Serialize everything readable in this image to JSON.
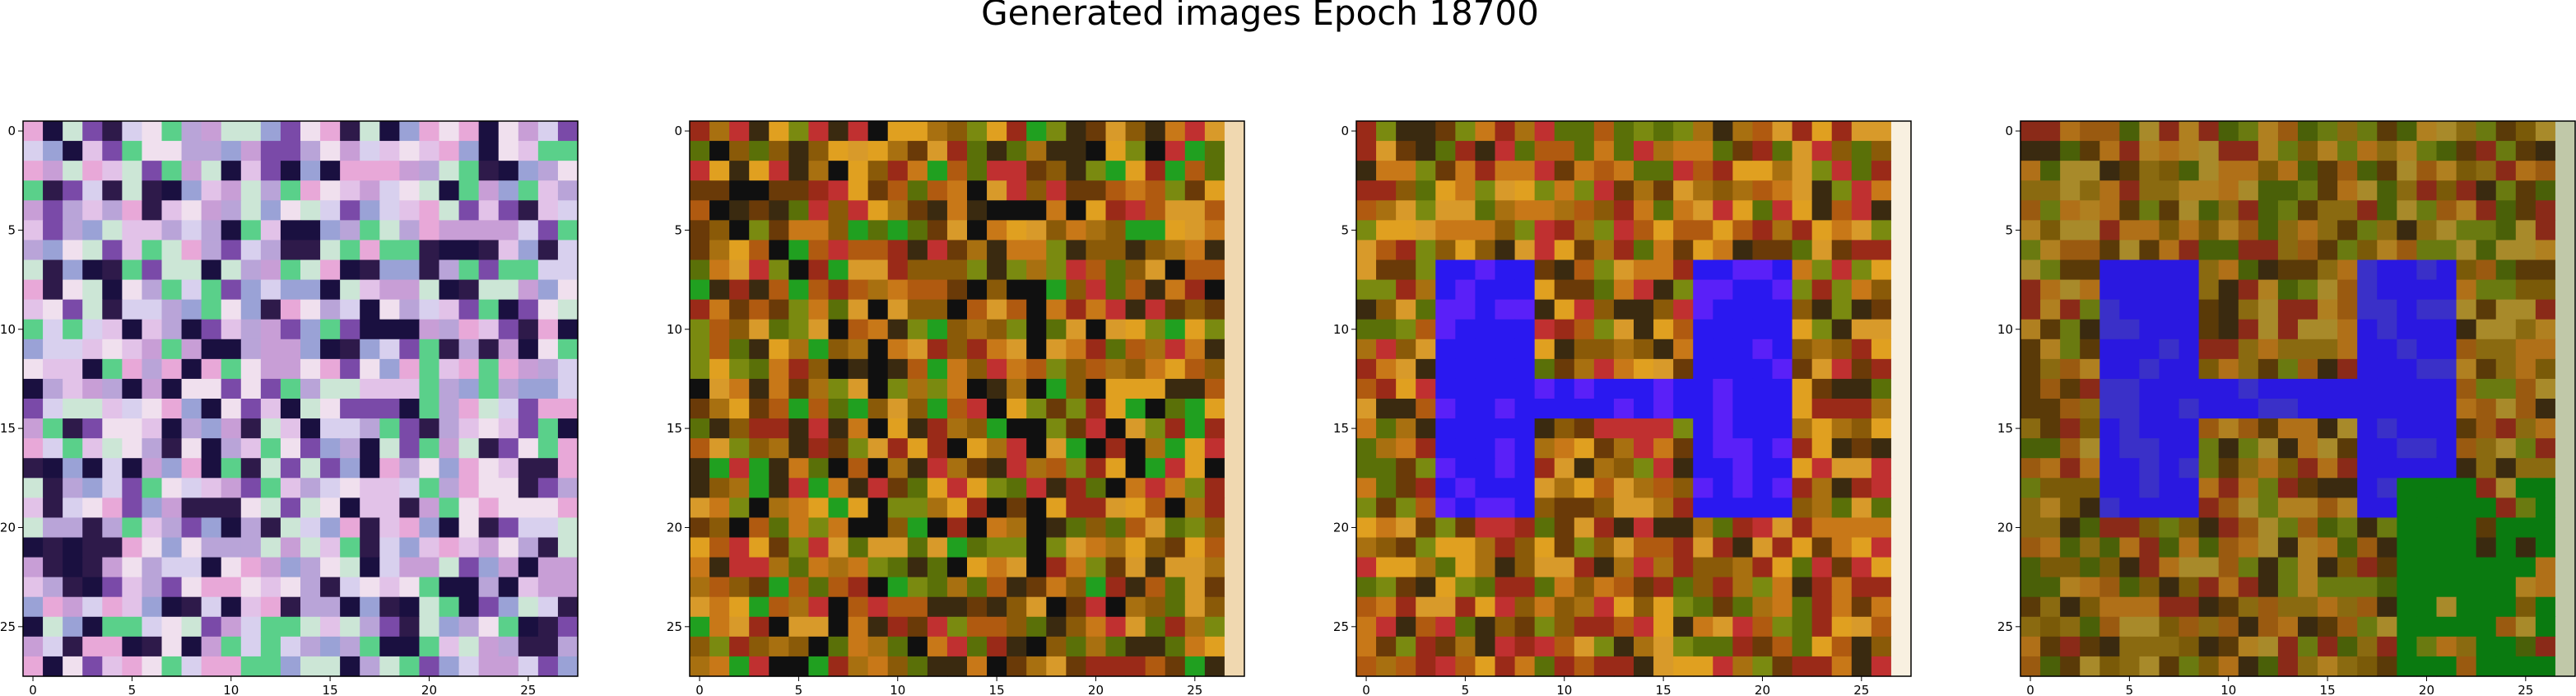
{
  "figure": {
    "suptitle": "Generated images Epoch 18700"
  },
  "chart_data": [
    {
      "type": "heatmap",
      "title": "",
      "grid_size": [
        28,
        28
      ],
      "xlim": [
        -0.5,
        27.5
      ],
      "ylim": [
        27.5,
        -0.5
      ],
      "xticks": [
        0,
        5,
        10,
        15,
        20,
        25
      ],
      "yticks": [
        0,
        5,
        10,
        15,
        20,
        25
      ],
      "grid": false,
      "palette": [
        "#c89ed6",
        "#e2c2e8",
        "#b9a4d8",
        "#d8d0ee",
        "#f0e0ee",
        "#9aa2d6",
        "#cce6d6",
        "#e8a8d8",
        "#7a4aa8",
        "#5ad08a",
        "#2e1a4a",
        "#1a1040"
      ],
      "pattern": "noise"
    },
    {
      "type": "heatmap",
      "title": "",
      "grid_size": [
        28,
        28
      ],
      "xlim": [
        -0.5,
        27.5
      ],
      "ylim": [
        27.5,
        -0.5
      ],
      "xticks": [
        0,
        5,
        10,
        15,
        20,
        25
      ],
      "yticks": [
        0,
        5,
        10,
        15,
        20,
        25
      ],
      "grid": false,
      "palette": [
        "#b05a10",
        "#c87818",
        "#8a5a08",
        "#a87010",
        "#6a3a08",
        "#d89a2a",
        "#7a8a10",
        "#5a7008",
        "#e0a020",
        "#9a2a18",
        "#c03030",
        "#3a2a10",
        "#20a020",
        "#101010"
      ],
      "last_column_color": "#f0d8b0",
      "pattern": "dark-vertical-strokes"
    },
    {
      "type": "heatmap",
      "title": "",
      "grid_size": [
        28,
        28
      ],
      "xlim": [
        -0.5,
        27.5
      ],
      "ylim": [
        27.5,
        -0.5
      ],
      "xticks": [
        0,
        5,
        10,
        15,
        20,
        25
      ],
      "yticks": [
        0,
        5,
        10,
        15,
        20,
        25
      ],
      "grid": false,
      "palette": [
        "#b05a10",
        "#c87818",
        "#8a5a08",
        "#a87010",
        "#6a3a08",
        "#d89a2a",
        "#7a8a10",
        "#5a7008",
        "#e0a020",
        "#9a2a18",
        "#c03030",
        "#3a2a10"
      ],
      "accent_color": "#2a18f0",
      "accent_alt_color": "#5a20f8",
      "last_column_color": "#f8f0e0",
      "pattern": "blue-H-shape"
    },
    {
      "type": "heatmap",
      "title": "",
      "grid_size": [
        28,
        28
      ],
      "xlim": [
        -0.5,
        27.5
      ],
      "ylim": [
        27.5,
        -0.5
      ],
      "xticks": [
        0,
        5,
        10,
        15,
        20,
        25
      ],
      "yticks": [
        0,
        5,
        10,
        15,
        20,
        25
      ],
      "grid": false,
      "palette": [
        "#9a5a10",
        "#b07018",
        "#7a5a08",
        "#8a6a10",
        "#5a3a08",
        "#a88a2a",
        "#6a7a10",
        "#4a6008",
        "#b08020",
        "#8a2a18",
        "#3a2a10"
      ],
      "accent_color": "#2a18e0",
      "accent_alt_color": "#3a30c8",
      "secondary_color": "#0a7a10",
      "last_column_color": "#c0c8a8",
      "pattern": "blue-H-shape-with-green-corner"
    }
  ]
}
